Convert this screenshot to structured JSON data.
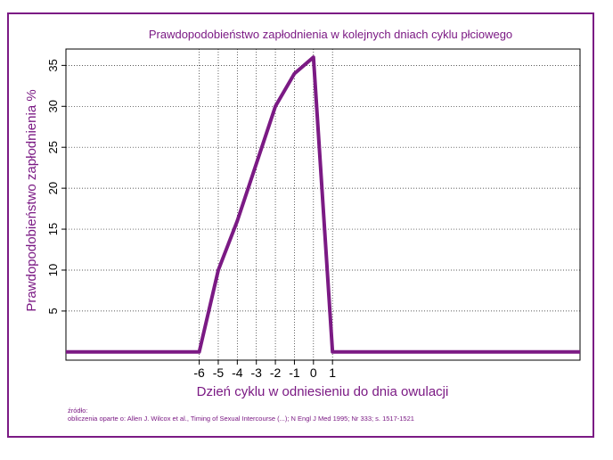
{
  "chart_data": {
    "type": "line",
    "title": "Prawdopodobieństwo zapłodnienia w kolejnych dniach cyklu płciowego",
    "xlabel": "Dzień cyklu w odniesieniu do dnia owulacji",
    "ylabel": "Prawdopodobieństwo zapłodnienia %",
    "x_ticks": [
      "-6",
      "-5",
      "-4",
      "-3",
      "-2",
      "-1",
      "0",
      "1"
    ],
    "y_ticks": [
      "5",
      "10",
      "15",
      "20",
      "25",
      "30",
      "35"
    ],
    "xlim": [
      -13,
      14
    ],
    "ylim": [
      -1,
      37
    ],
    "grid": true,
    "series": [
      {
        "x": [
          -13,
          -6,
          -5,
          -4,
          -3,
          -2,
          -1,
          0,
          1,
          14
        ],
        "y": [
          0,
          0,
          10,
          16,
          23,
          30,
          34,
          36,
          0,
          0
        ]
      }
    ]
  },
  "source": {
    "label": "źródło:",
    "text": "obliczenia oparte o: Allen J. Wilcox et al., Timing of Sexual Intercourse (...); N Engl J Med 1995; Nr 333; s. 1517-1521"
  },
  "colors": {
    "accent": "#7b1a84",
    "grid": "#222222",
    "axis": "#000000"
  }
}
